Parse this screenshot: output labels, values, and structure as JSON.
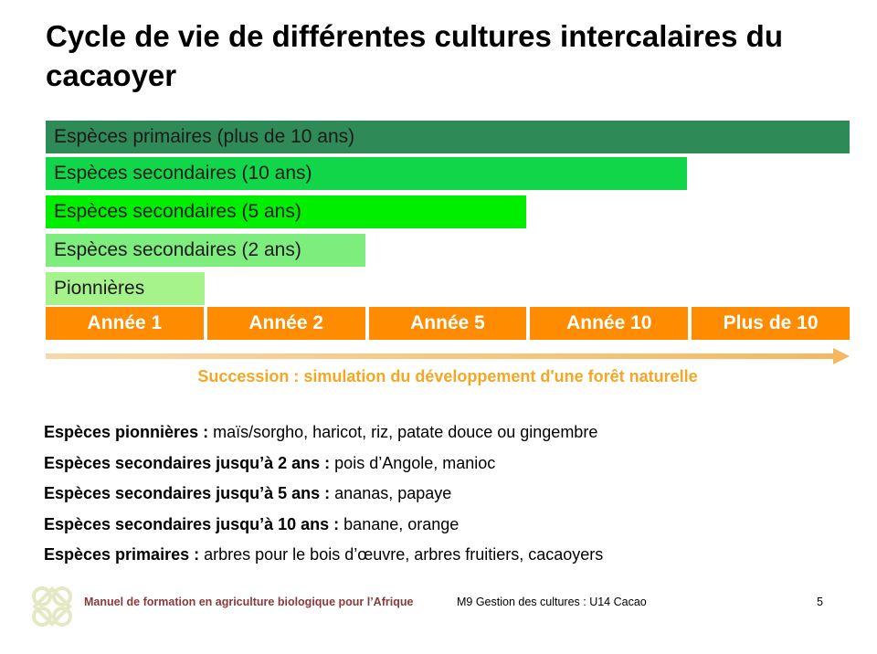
{
  "title": "Cycle de vie de différentes cultures intercalaires du cacaoyer",
  "colors": {
    "primary_bar": "#2e8b57",
    "secondary10_bar": "#11d64a",
    "secondary5_bar": "#00ee00",
    "secondary2_bar": "#7ded7d",
    "pioneer_bar": "#a6f38c",
    "year_cell": "#ff8c00",
    "arrow": "#f5c98a",
    "succession_text": "#f5a623",
    "footer_manual_text": "#8b3a3a"
  },
  "bars": [
    {
      "label": "Espèces primaires (plus de 10 ans)",
      "color": "#2e8b57",
      "span_years": 5
    },
    {
      "label": "Espèces secondaires (10 ans)",
      "color": "#11d64a",
      "span_years": 4
    },
    {
      "label": "Espèces secondaires (5 ans)",
      "color": "#00ee00",
      "span_years": 3
    },
    {
      "label": "Espèces secondaires (2 ans)",
      "color": "#7ded7d",
      "span_years": 2
    },
    {
      "label": "Pionnières",
      "color": "#a6f38c",
      "span_years": 1
    }
  ],
  "years": [
    "Année 1",
    "Année 2",
    "Année 5",
    "Année 10",
    "Plus de 10"
  ],
  "succession_label": "Succession : simulation du développement d'une forêt naturelle",
  "species": [
    {
      "term": "Espèces pionnières :",
      "desc": "maïs/sorgho, haricot, riz, patate douce ou gingembre"
    },
    {
      "term": "Espèces secondaires jusqu’à 2 ans :",
      "desc": "pois d’Angole, manioc"
    },
    {
      "term": "Espèces secondaires jusqu’à 5 ans :",
      "desc": "ananas, papaye"
    },
    {
      "term": "Espèces secondaires jusqu’à 10 ans :",
      "desc": "banane, orange"
    },
    {
      "term": "Espèces primaires :",
      "desc": "arbres pour le bois d’œuvre, arbres fruitiers, cacaoyers"
    }
  ],
  "footer": {
    "manual": "Manuel de formation en agriculture biologique pour l’Afrique",
    "module": "M9 Gestion des cultures : U14 Cacao",
    "page": "5",
    "logo_icon": "knot-logo-icon"
  }
}
